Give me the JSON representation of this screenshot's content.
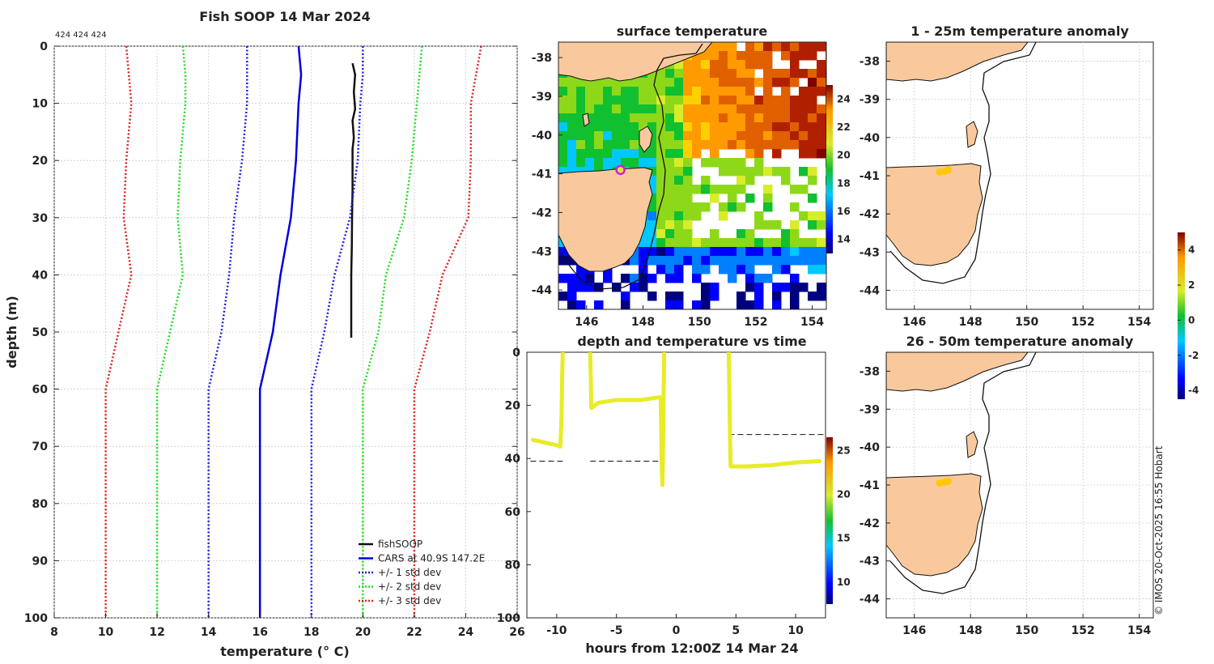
{
  "figure": {
    "main_title": "Fish SOOP 14 Mar 2024",
    "copyright": "© IMOS 20-Oct-2025 16:55 Hobart",
    "colors": {
      "land": "#f9c99d",
      "fish": "#111111",
      "cars": "#0000dd",
      "std1": "#2222dd",
      "std2": "#22dd22",
      "std3": "#dd2222",
      "track": "#e8ec28"
    }
  },
  "chart_data": [
    {
      "id": "profile",
      "type": "line",
      "title": "Fish SOOP 14 Mar 2024",
      "annotation": "424 424 424",
      "xlabel": "temperature (° C)",
      "ylabel": "depth (m)",
      "xlim": [
        8,
        26
      ],
      "ylim": [
        0,
        100
      ],
      "y_reversed": true,
      "grid": true,
      "xticks": [
        "8",
        "10",
        "12",
        "14",
        "16",
        "18",
        "20",
        "22",
        "24",
        "26"
      ],
      "yticks": [
        "0",
        "10",
        "20",
        "30",
        "40",
        "50",
        "60",
        "70",
        "80",
        "90",
        "100"
      ],
      "legend_position": "bottom-right",
      "series": [
        {
          "name": "fishSOOP",
          "style": "solid",
          "color": "#111111",
          "points": [
            [
              19.6,
              3
            ],
            [
              19.7,
              5
            ],
            [
              19.65,
              8
            ],
            [
              19.7,
              11
            ],
            [
              19.6,
              13
            ],
            [
              19.65,
              16
            ],
            [
              19.6,
              18
            ],
            [
              19.6,
              20
            ],
            [
              19.6,
              25
            ],
            [
              19.58,
              30
            ],
            [
              19.57,
              35
            ],
            [
              19.55,
              40
            ],
            [
              19.55,
              45
            ],
            [
              19.55,
              51
            ]
          ]
        },
        {
          "name": "CARS at 40.9S 147.2E",
          "style": "solid",
          "color": "#0000dd",
          "points": [
            [
              17.5,
              0
            ],
            [
              17.6,
              5
            ],
            [
              17.5,
              10
            ],
            [
              17.4,
              20
            ],
            [
              17.2,
              30
            ],
            [
              16.8,
              40
            ],
            [
              16.5,
              50
            ],
            [
              16.0,
              60
            ],
            [
              16.0,
              70
            ],
            [
              16.0,
              80
            ],
            [
              16.0,
              90
            ],
            [
              16.0,
              100
            ]
          ]
        },
        {
          "name": "+/- 1 std dev",
          "style": "dotted",
          "color": "#2222dd",
          "points": [
            [
              15.5,
              0
            ],
            [
              15.5,
              5
            ],
            [
              15.5,
              10
            ],
            [
              15.3,
              20
            ],
            [
              15.0,
              30
            ],
            [
              14.8,
              40
            ],
            [
              14.5,
              50
            ],
            [
              14.0,
              60
            ],
            [
              14.0,
              70
            ],
            [
              14.0,
              80
            ],
            [
              14.0,
              90
            ],
            [
              14.0,
              100
            ]
          ]
        },
        {
          "name": "+/- 1 std dev (upper)",
          "style": "dotted",
          "color": "#2222dd",
          "points": [
            [
              20.0,
              0
            ],
            [
              20.0,
              5
            ],
            [
              19.9,
              10
            ],
            [
              19.8,
              20
            ],
            [
              19.5,
              30
            ],
            [
              18.9,
              40
            ],
            [
              18.5,
              50
            ],
            [
              18.0,
              60
            ],
            [
              18.0,
              70
            ],
            [
              18.0,
              80
            ],
            [
              18.0,
              90
            ],
            [
              18.0,
              100
            ]
          ]
        },
        {
          "name": "+/- 2 std dev",
          "style": "dotted",
          "color": "#22dd22",
          "points": [
            [
              13.0,
              0
            ],
            [
              13.1,
              5
            ],
            [
              13.1,
              10
            ],
            [
              12.9,
              20
            ],
            [
              12.8,
              30
            ],
            [
              13.0,
              40
            ],
            [
              12.5,
              50
            ],
            [
              12.0,
              60
            ],
            [
              12.0,
              70
            ],
            [
              12.0,
              80
            ],
            [
              12.0,
              90
            ],
            [
              12.0,
              100
            ]
          ]
        },
        {
          "name": "+/- 2 std dev (upper)",
          "style": "dotted",
          "color": "#22dd22",
          "points": [
            [
              22.3,
              0
            ],
            [
              22.2,
              5
            ],
            [
              22.1,
              10
            ],
            [
              21.9,
              20
            ],
            [
              21.6,
              30
            ],
            [
              20.9,
              40
            ],
            [
              20.6,
              50
            ],
            [
              20.0,
              60
            ],
            [
              20.0,
              70
            ],
            [
              20.0,
              80
            ],
            [
              20.0,
              90
            ],
            [
              20.0,
              100
            ]
          ]
        },
        {
          "name": "+/- 3 std dev",
          "style": "dotted",
          "color": "#dd2222",
          "points": [
            [
              10.8,
              0
            ],
            [
              10.9,
              5
            ],
            [
              11.0,
              10
            ],
            [
              10.8,
              20
            ],
            [
              10.7,
              30
            ],
            [
              11.0,
              40
            ],
            [
              10.5,
              50
            ],
            [
              10.0,
              60
            ],
            [
              10.0,
              70
            ],
            [
              10.0,
              80
            ],
            [
              10.0,
              90
            ],
            [
              10.0,
              100
            ]
          ]
        },
        {
          "name": "+/- 3 std dev (upper)",
          "style": "dotted",
          "color": "#dd2222",
          "points": [
            [
              24.6,
              0
            ],
            [
              24.4,
              5
            ],
            [
              24.2,
              10
            ],
            [
              24.2,
              20
            ],
            [
              24.1,
              30
            ],
            [
              23.1,
              40
            ],
            [
              22.6,
              50
            ],
            [
              22.0,
              60
            ],
            [
              22.0,
              70
            ],
            [
              22.0,
              80
            ],
            [
              22.0,
              90
            ],
            [
              22.0,
              100
            ]
          ]
        }
      ],
      "legend": [
        "fishSOOP",
        "CARS at 40.9S 147.2E",
        "+/- 1 std dev",
        "+/- 2 std dev",
        "+/- 3 std dev"
      ]
    },
    {
      "id": "sst",
      "type": "heatmap",
      "title": "surface temperature",
      "xlim": [
        145,
        154.5
      ],
      "ylim": [
        -44.5,
        -37.6
      ],
      "xticks": [
        "146",
        "148",
        "150",
        "152",
        "154"
      ],
      "yticks": [
        "-38",
        "-39",
        "-40",
        "-41",
        "-42",
        "-43",
        "-44"
      ],
      "colorbar_ticks": [
        "14",
        "16",
        "18",
        "20",
        "22",
        "24"
      ],
      "colorbar_range": [
        13,
        25
      ],
      "marker": {
        "lon": 147.2,
        "lat": -40.9
      }
    },
    {
      "id": "timeseries",
      "type": "scatter",
      "title": "depth and temperature vs time",
      "xlabel": "hours from 12:00Z 14 Mar 24",
      "xlim": [
        -12.5,
        12.5
      ],
      "ylim": [
        0,
        100
      ],
      "y_reversed": true,
      "xticks": [
        "-10",
        "-5",
        "0",
        "5",
        "10"
      ],
      "yticks": [
        "0",
        "20",
        "40",
        "60",
        "80",
        "100"
      ],
      "colorbar_ticks": [
        "10",
        "15",
        "20",
        "25"
      ],
      "colorbar_range": [
        7.5,
        26.5
      ],
      "segments": [
        [
          [
            -12.0,
            33
          ],
          [
            -11,
            34
          ],
          [
            -10,
            35
          ],
          [
            -9.7,
            35.5
          ],
          [
            -9.6,
            25
          ],
          [
            -9.55,
            10
          ],
          [
            -9.5,
            0
          ]
        ],
        [
          [
            -7.2,
            0
          ],
          [
            -7.15,
            10
          ],
          [
            -7.1,
            21
          ],
          [
            -6.5,
            19
          ],
          [
            -5,
            18
          ],
          [
            -3,
            18
          ],
          [
            -1.5,
            17
          ],
          [
            -1.3,
            17
          ],
          [
            -1.25,
            30
          ],
          [
            -1.2,
            45
          ],
          [
            -1.15,
            50
          ],
          [
            -1.1,
            35
          ],
          [
            -1.05,
            15
          ],
          [
            -1.0,
            0
          ]
        ],
        [
          [
            4.4,
            0
          ],
          [
            4.45,
            15
          ],
          [
            4.5,
            30
          ],
          [
            4.55,
            43
          ],
          [
            6,
            43
          ],
          [
            8,
            42.5
          ],
          [
            10,
            41.5
          ],
          [
            12,
            41
          ]
        ]
      ],
      "dashed_lines": [
        {
          "t0": -12.2,
          "t1": -9.4,
          "depth": 41
        },
        {
          "t0": -7.2,
          "t1": -1.0,
          "depth": 41
        },
        {
          "t0": 4.4,
          "t1": 12.5,
          "depth": 31
        }
      ]
    },
    {
      "id": "anom1",
      "type": "scatter",
      "title": "1 - 25m temperature anomaly",
      "xlim": [
        145,
        154.5
      ],
      "ylim": [
        -44.5,
        -37.5
      ],
      "xticks": [
        "146",
        "148",
        "150",
        "152",
        "154"
      ],
      "yticks": [
        "-38",
        "-39",
        "-40",
        "-41",
        "-42",
        "-43",
        "-44"
      ],
      "points": [
        {
          "lon": 146.9,
          "lat": -40.9,
          "anomaly": 2.3
        },
        {
          "lon": 147.1,
          "lat": -40.88,
          "anomaly": 2.4
        },
        {
          "lon": 147.2,
          "lat": -40.85,
          "anomaly": 2.5
        }
      ]
    },
    {
      "id": "anom2",
      "type": "scatter",
      "title": "26 - 50m temperature anomaly",
      "xlim": [
        145,
        154.5
      ],
      "ylim": [
        -44.5,
        -37.5
      ],
      "xticks": [
        "146",
        "148",
        "150",
        "152",
        "154"
      ],
      "yticks": [
        "-38",
        "-39",
        "-40",
        "-41",
        "-42",
        "-43",
        "-44"
      ],
      "points": [
        {
          "lon": 146.9,
          "lat": -40.95,
          "anomaly": 2.6
        },
        {
          "lon": 147.1,
          "lat": -40.92,
          "anomaly": 2.8
        },
        {
          "lon": 147.2,
          "lat": -40.9,
          "anomaly": 2.7
        }
      ]
    },
    {
      "id": "anomaly_colorbar",
      "type": "heatmap",
      "ticks": [
        "4",
        "2",
        "0",
        "-2",
        "-4"
      ],
      "range": [
        -4.5,
        5
      ]
    }
  ]
}
